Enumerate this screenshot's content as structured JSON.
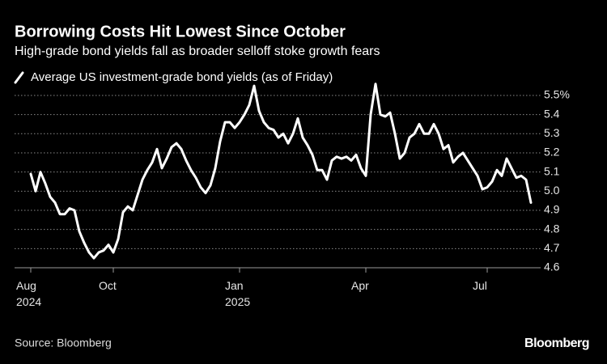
{
  "chart_data": {
    "type": "line",
    "title": "Borrowing Costs Hit Lowest Since October",
    "subtitle": "High-grade bond yields fall as broader selloff stoke growth fears",
    "source": "Source: Bloomberg",
    "logo": "Bloomberg",
    "categories": [
      "Aug\n2024",
      null,
      null,
      null,
      null,
      null,
      null,
      null,
      null,
      null,
      null,
      null,
      null,
      null,
      null,
      null,
      null,
      "Oct",
      null,
      null,
      null,
      null,
      null,
      null,
      null,
      null,
      null,
      null,
      null,
      null,
      null,
      null,
      null,
      null,
      null,
      null,
      null,
      null,
      null,
      null,
      null,
      null,
      null,
      "Jan\n2025",
      null,
      null,
      null,
      null,
      null,
      null,
      null,
      null,
      null,
      null,
      null,
      null,
      null,
      null,
      null,
      null,
      null,
      null,
      null,
      null,
      null,
      null,
      null,
      null,
      null,
      "Apr",
      null,
      null,
      null,
      null,
      null,
      null,
      null,
      null,
      null,
      null,
      null,
      null,
      null,
      null,
      null,
      null,
      null,
      null,
      null,
      null,
      null,
      null,
      null,
      null,
      "Jul",
      null,
      null,
      null,
      null,
      null,
      null,
      null,
      null,
      null
    ],
    "series": [
      {
        "name": "Average US investment-grade bond yields (as of Friday)",
        "color": "#ffffff",
        "values": [
          5.09,
          5.0,
          5.1,
          5.04,
          4.97,
          4.94,
          4.88,
          4.88,
          4.91,
          4.9,
          4.79,
          4.73,
          4.68,
          4.65,
          4.68,
          4.69,
          4.72,
          4.68,
          4.75,
          4.89,
          4.92,
          4.9,
          4.98,
          5.06,
          5.11,
          5.15,
          5.22,
          5.12,
          5.17,
          5.23,
          5.25,
          5.22,
          5.16,
          5.11,
          5.07,
          5.02,
          4.99,
          5.03,
          5.12,
          5.26,
          5.36,
          5.36,
          5.33,
          5.36,
          5.4,
          5.45,
          5.55,
          5.42,
          5.36,
          5.33,
          5.32,
          5.28,
          5.3,
          5.25,
          5.3,
          5.38,
          5.28,
          5.24,
          5.19,
          5.11,
          5.11,
          5.06,
          5.16,
          5.18,
          5.17,
          5.18,
          5.16,
          5.19,
          5.12,
          5.08,
          5.4,
          5.56,
          5.4,
          5.39,
          5.41,
          5.3,
          5.17,
          5.2,
          5.28,
          5.3,
          5.35,
          5.3,
          5.3,
          5.35,
          5.3,
          5.22,
          5.24,
          5.15,
          5.18,
          5.2,
          5.16,
          5.12,
          5.08,
          5.01,
          5.02,
          5.05,
          5.11,
          5.08,
          5.17,
          5.12,
          5.07,
          5.08,
          5.06,
          4.94
        ]
      }
    ],
    "ylim": [
      4.6,
      5.6
    ],
    "yticks": [
      4.6,
      4.7,
      4.8,
      4.9,
      {
        "value": 5,
        "label": "5.0"
      },
      5.1,
      5.2,
      5.3,
      5.4,
      {
        "value": 5.5,
        "label": "5.5%"
      }
    ],
    "grid": true
  }
}
